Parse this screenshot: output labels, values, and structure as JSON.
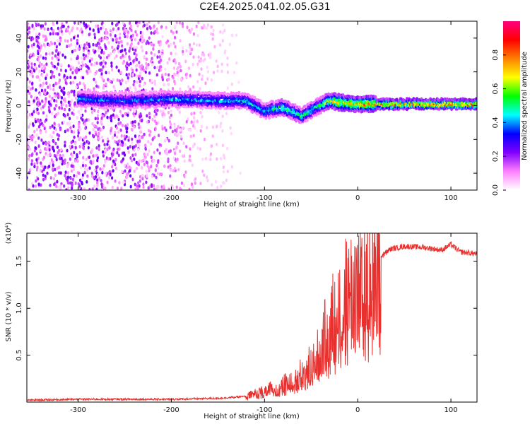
{
  "title": "C2E4.2025.041.02.05.G31",
  "chart_data": [
    {
      "type": "heatmap",
      "xlabel": "Height of straight line (km)",
      "ylabel": "Frequency (Hz)",
      "xlim": [
        -355,
        128
      ],
      "ylim": [
        -50,
        50
      ],
      "x_ticks": [
        -300,
        -200,
        -100,
        0,
        100
      ],
      "y_ticks": [
        -40,
        -20,
        0,
        20,
        40
      ],
      "colorbar": {
        "label": "Normalized spectral amplitude",
        "ticks": [
          0.0,
          0.2,
          0.4,
          0.6,
          0.8
        ],
        "range": [
          0,
          1
        ],
        "colors": [
          "#ffffff",
          "#ff80ff",
          "#8000ff",
          "#0000ff",
          "#00ffff",
          "#00ff00",
          "#ffff00",
          "#ff8000",
          "#ff0000",
          "#ff0080"
        ]
      },
      "ridge": {
        "x": [
          -300,
          -250,
          -200,
          -150,
          -120,
          -100,
          -80,
          -60,
          -45,
          -30,
          -20,
          0,
          50,
          100,
          128
        ],
        "freq": [
          4,
          3,
          4,
          3,
          3,
          -3,
          -1,
          -6,
          -1,
          3,
          2,
          1,
          1,
          1,
          1
        ],
        "amplitude": [
          0.45,
          0.4,
          0.45,
          0.45,
          0.5,
          0.45,
          0.6,
          0.55,
          0.5,
          0.7,
          0.75,
          0.8,
          0.85,
          0.85,
          0.85
        ]
      }
    },
    {
      "type": "line",
      "xlabel": "Height of straight line (km)",
      "ylabel": "SNR (10 * v/v)",
      "y_multiplier": "(x10⁴)",
      "xlim": [
        -355,
        128
      ],
      "ylim": [
        0,
        1.8
      ],
      "x_ticks": [
        -300,
        -200,
        -100,
        0,
        100
      ],
      "y_ticks": [
        0.5,
        1.0,
        1.5
      ],
      "y_tick_labels": [
        "0.5",
        "1.0",
        "1.5"
      ],
      "series": [
        {
          "color": "#e8312e",
          "x": [
            -355,
            -300,
            -250,
            -200,
            -150,
            -120,
            -100,
            -80,
            -60,
            -45,
            -35,
            -25,
            -15,
            -5,
            5,
            15,
            25,
            35,
            50,
            70,
            90,
            100,
            110,
            128
          ],
          "y": [
            0.02,
            0.03,
            0.03,
            0.03,
            0.04,
            0.06,
            0.12,
            0.18,
            0.3,
            0.45,
            0.7,
            0.95,
            1.1,
            1.2,
            1.35,
            1.45,
            1.55,
            1.63,
            1.66,
            1.65,
            1.62,
            1.68,
            1.6,
            1.58
          ]
        }
      ]
    }
  ]
}
